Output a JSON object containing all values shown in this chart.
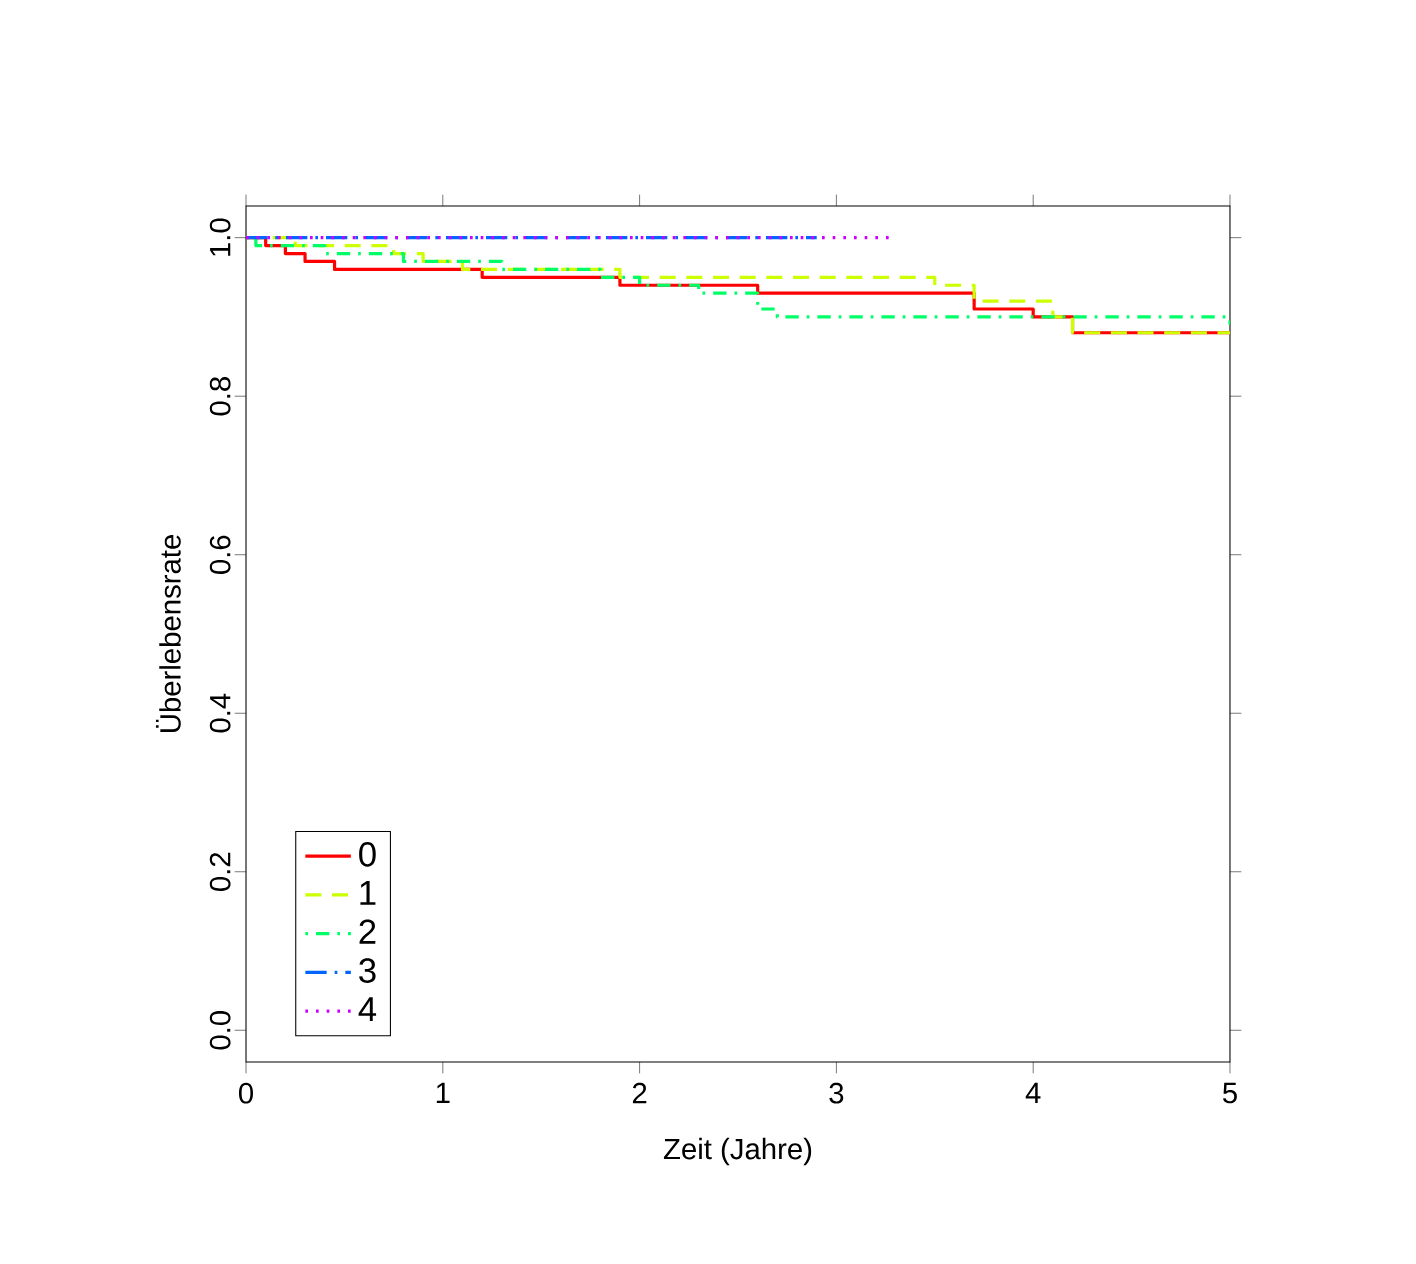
{
  "chart_data": {
    "type": "step",
    "xlabel": "Zeit (Jahre)",
    "ylabel": "Überlebensrate",
    "xlim": [
      0,
      5
    ],
    "ylim": [
      -0.04,
      1.04
    ],
    "xticks": [
      0,
      1,
      2,
      3,
      4,
      5
    ],
    "yticks": [
      {
        "value": 0,
        "label": "0.0"
      },
      {
        "value": 0.2,
        "label": "0.2"
      },
      {
        "value": 0.4,
        "label": "0.4"
      },
      {
        "value": 0.6,
        "label": "0.6"
      },
      {
        "value": 0.8,
        "label": "0.8"
      },
      {
        "value": 1,
        "label": "1.0"
      }
    ],
    "legend": "bottom left",
    "grid": false,
    "series": [
      {
        "name": "0",
        "color": "#ff0000",
        "line_style": "solid",
        "x": [
          0,
          0.1,
          0.2,
          0.3,
          0.45,
          1.2,
          1.9,
          2.6,
          3.7,
          4.0,
          4.2,
          5
        ],
        "values": [
          1,
          0.99,
          0.98,
          0.97,
          0.96,
          0.95,
          0.94,
          0.93,
          0.91,
          0.9,
          0.88,
          0.88
        ]
      },
      {
        "name": "1",
        "color": "#ccff00",
        "line_style": "dashed",
        "x": [
          0,
          0.25,
          0.75,
          0.9,
          1.1,
          1.9,
          3.5,
          3.7,
          4.1,
          4.2,
          5
        ],
        "values": [
          1,
          0.99,
          0.98,
          0.97,
          0.96,
          0.95,
          0.94,
          0.92,
          0.9,
          0.88,
          0.88
        ]
      },
      {
        "name": "2",
        "color": "#00ff66",
        "line_style": "dashdot",
        "x": [
          0,
          0.05,
          0.4,
          0.8,
          1.3,
          1.8,
          2.0,
          2.3,
          2.6,
          2.7,
          5
        ],
        "values": [
          1,
          0.99,
          0.98,
          0.97,
          0.96,
          0.95,
          0.94,
          0.93,
          0.91,
          0.9,
          0.89
        ]
      },
      {
        "name": "3",
        "color": "#0066ff",
        "line_style": "longdashdot",
        "x": [
          0,
          2.9
        ],
        "values": [
          1,
          1
        ]
      },
      {
        "name": "4",
        "color": "#cc00ff",
        "line_style": "dotted",
        "x": [
          0,
          3.3
        ],
        "values": [
          1,
          1
        ]
      }
    ]
  }
}
